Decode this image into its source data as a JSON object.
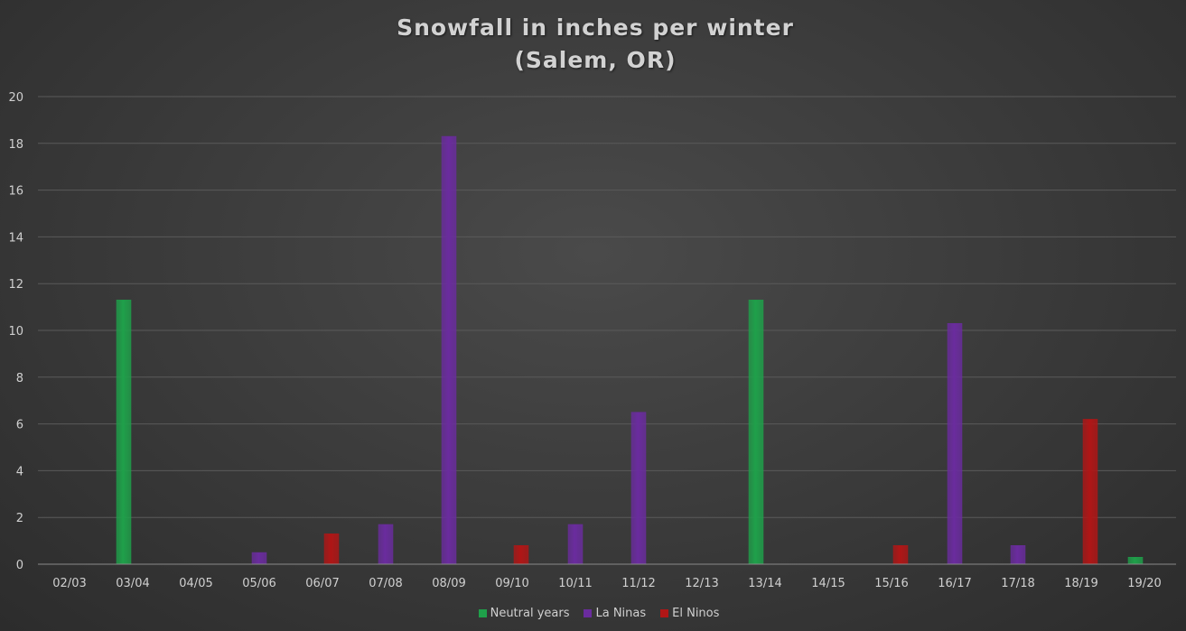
{
  "chart_data": {
    "type": "bar",
    "title": "Snowfall in inches per winter",
    "subtitle": "(Salem, OR)",
    "categories": [
      "02/03",
      "03/04",
      "04/05",
      "05/06",
      "06/07",
      "07/08",
      "08/09",
      "09/10",
      "10/11",
      "11/12",
      "12/13",
      "13/14",
      "14/15",
      "15/16",
      "16/17",
      "17/18",
      "18/19",
      "19/20"
    ],
    "series": [
      {
        "name": "Neutral years",
        "color": "#1fa04a",
        "values": [
          null,
          11.3,
          null,
          null,
          null,
          null,
          null,
          null,
          null,
          null,
          null,
          11.3,
          null,
          null,
          null,
          null,
          null,
          0.3
        ]
      },
      {
        "name": "La Ninas",
        "color": "#6a2c9e",
        "values": [
          null,
          null,
          null,
          0.5,
          null,
          1.7,
          18.3,
          null,
          1.7,
          6.5,
          null,
          null,
          null,
          null,
          10.3,
          0.8,
          null,
          null
        ]
      },
      {
        "name": "El Ninos",
        "color": "#b01616",
        "values": [
          null,
          null,
          null,
          null,
          1.3,
          null,
          null,
          0.8,
          null,
          null,
          null,
          null,
          null,
          0.8,
          null,
          null,
          6.2,
          null
        ]
      }
    ],
    "ylim": [
      0,
      20
    ],
    "yticks": [
      0,
      2,
      4,
      6,
      8,
      10,
      12,
      14,
      16,
      18,
      20
    ],
    "grid": true,
    "legend_position": "bottom"
  }
}
